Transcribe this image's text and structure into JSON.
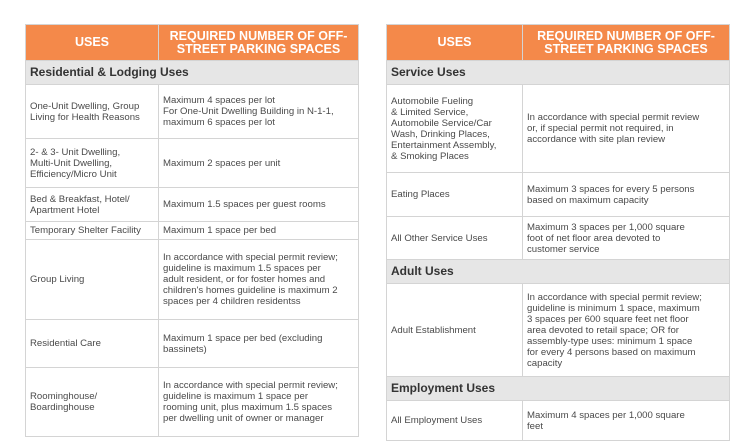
{
  "left_table": {
    "headers": {
      "uses": "USES",
      "required": "REQUIRED NUMBER OF OFF-\nSTREET PARKING SPACES"
    },
    "section": "Residential & Lodging Uses",
    "rows": [
      {
        "use": "One-Unit Dwelling, Group\nLiving for Health Reasons",
        "required": "Maximum 4 spaces per lot\nFor One-Unit Dwelling Building in N-1-1,\nmaximum 6 spaces per lot"
      },
      {
        "use": "2- & 3- Unit Dwelling,\nMulti-Unit Dwelling,\nEfficiency/Micro Unit",
        "required": "Maximum 2 spaces per unit"
      },
      {
        "use": "Bed & Breakfast, Hotel/\nApartment Hotel",
        "required": "Maximum 1.5 spaces per guest rooms"
      },
      {
        "use": "Temporary Shelter Facility",
        "required": "Maximum 1 space per bed"
      },
      {
        "use": "Group Living",
        "required": "In accordance with special permit review;\nguideline is maximum 1.5 spaces per\nadult resident, or for foster homes and\nchildren's homes guideline is maximum 2\nspaces per 4 children residentss"
      },
      {
        "use": "Residential Care",
        "required": "Maximum 1 space per bed (excluding\nbassinets)"
      },
      {
        "use": "Roominghouse/\nBoardinghouse",
        "required": "In accordance with special permit review;\nguideline is maximum 1 space per\nrooming unit, plus maximum 1.5 spaces\nper dwelling unit of owner or manager"
      }
    ]
  },
  "right_table": {
    "headers": {
      "uses": "USES",
      "required": "REQUIRED NUMBER OF OFF-\nSTREET PARKING SPACES"
    },
    "sections": [
      {
        "title": "Service Uses",
        "rows": [
          {
            "use": "Automobile Fueling\n& Limited Service,\nAutomobile Service/Car\nWash, Drinking Places,\nEntertainment Assembly,\n& Smoking Places",
            "required": "In accordance with special permit review\nor, if special permit not required, in\naccordance with site plan review"
          },
          {
            "use": "Eating Places",
            "required": "Maximum 3 spaces for every 5 persons\nbased on maximum capacity"
          },
          {
            "use": "All Other Service Uses",
            "required": "Maximum 3 spaces per 1,000 square\nfoot of net floor area devoted to\ncustomer service"
          }
        ]
      },
      {
        "title": "Adult Uses",
        "rows": [
          {
            "use": "Adult Establishment",
            "required": "In accordance with special permit review;\nguideline is minimum 1 space, maximum\n3 spaces per 600 square feet net floor\narea devoted to retail space; OR for\nassembly-type uses: minimum 1 space\nfor every 4 persons based on maximum\ncapacity"
          }
        ]
      },
      {
        "title": "Employment Uses",
        "rows": [
          {
            "use": "All Employment Uses",
            "required": "Maximum 4 spaces per 1,000 square\nfeet"
          }
        ]
      }
    ]
  }
}
